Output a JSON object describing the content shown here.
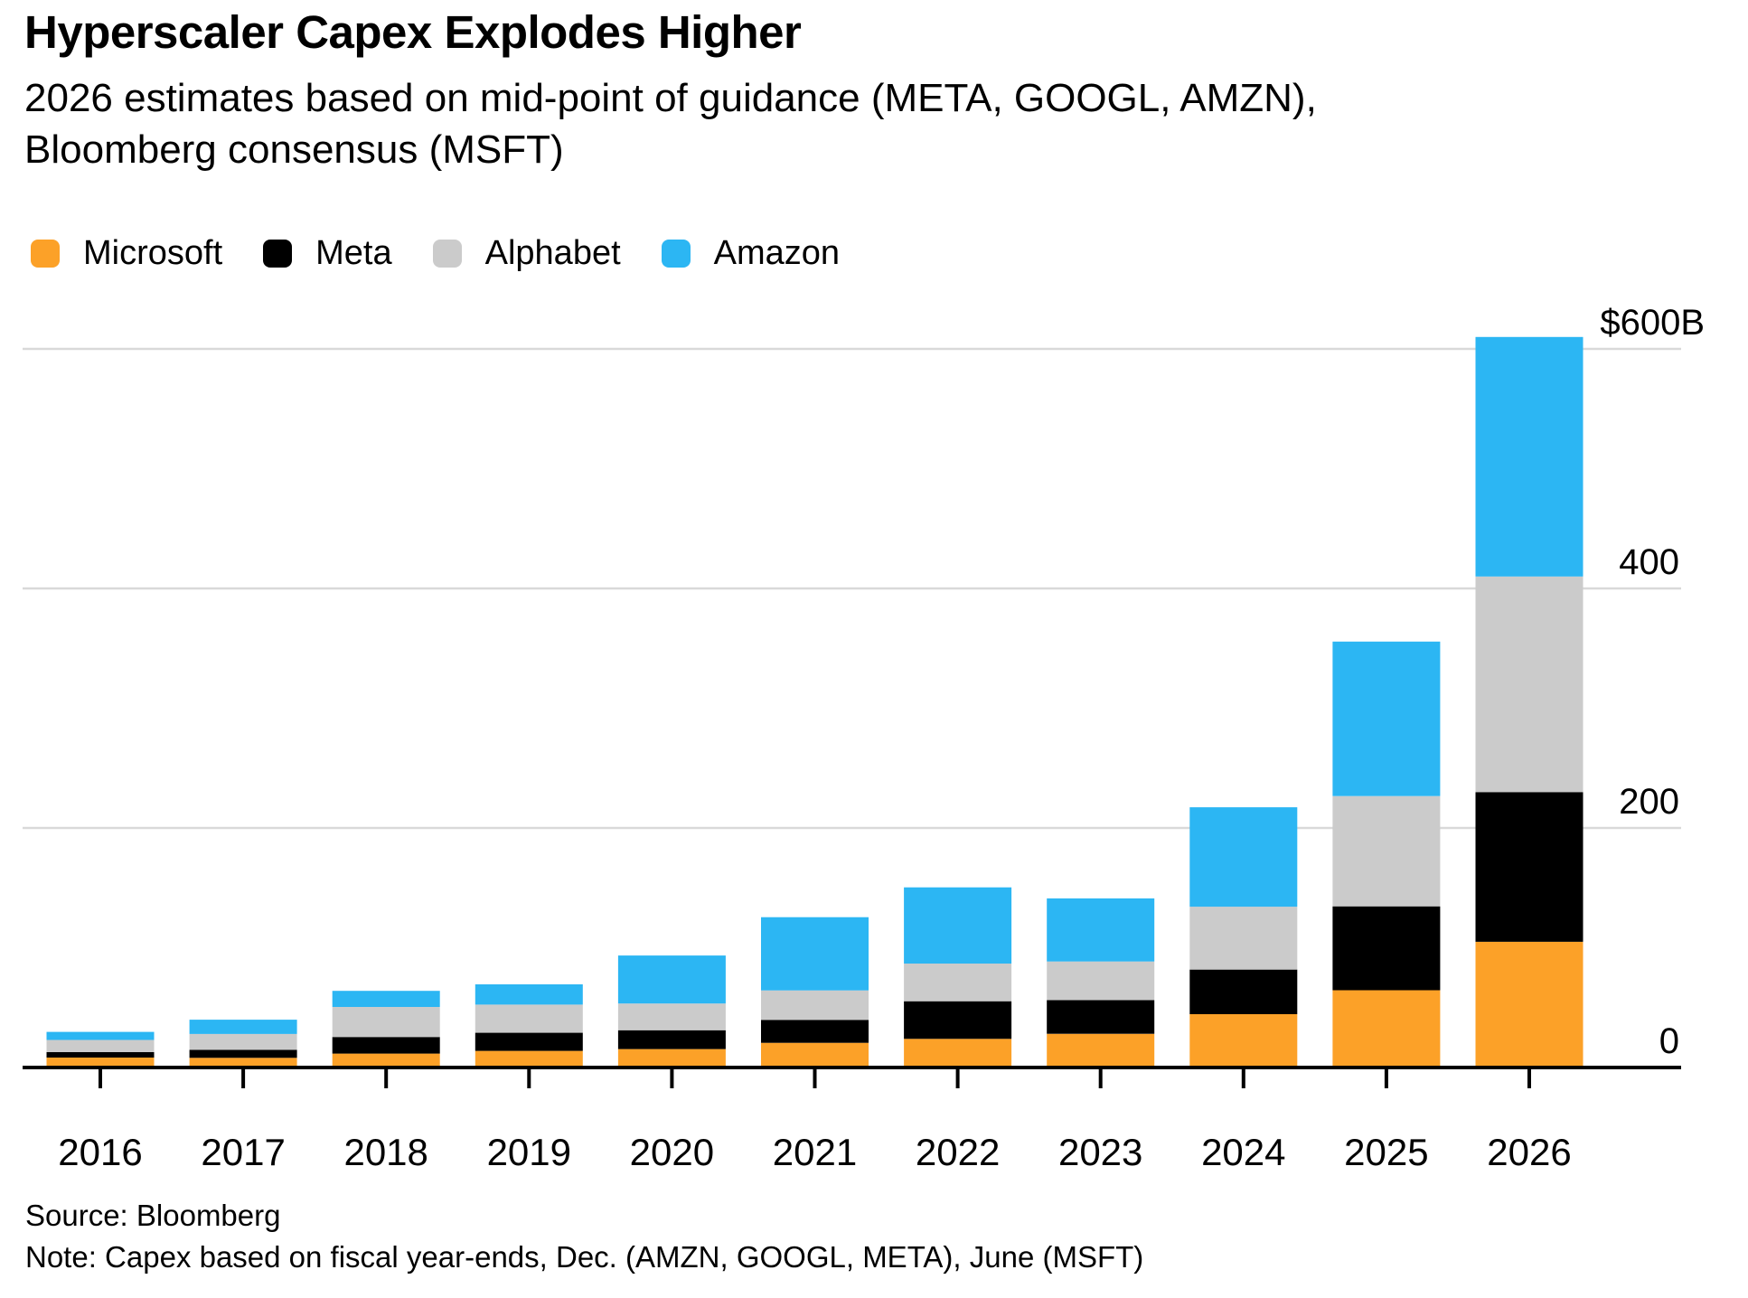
{
  "header": {
    "title": "Hyperscaler Capex Explodes Higher",
    "subtitle": "2026 estimates based on mid-point of guidance (META, GOOGL, AMZN), Bloomberg consensus (MSFT)"
  },
  "legend": {
    "items": [
      {
        "label": "Microsoft",
        "color": "#FCA128"
      },
      {
        "label": "Meta",
        "color": "#000000"
      },
      {
        "label": "Alphabet",
        "color": "#CBCBCB"
      },
      {
        "label": "Amazon",
        "color": "#2CB6F3"
      }
    ]
  },
  "chart_data": {
    "type": "bar",
    "stacked": true,
    "title": "Hyperscaler Capex Explodes Higher",
    "subtitle": "2026 estimates based on mid-point of guidance (META, GOOGL, AMZN), Bloomberg consensus (MSFT)",
    "unit": "$B",
    "categories": [
      "2016",
      "2017",
      "2018",
      "2019",
      "2020",
      "2021",
      "2022",
      "2023",
      "2024",
      "2025",
      "2026"
    ],
    "series": [
      {
        "name": "Microsoft",
        "color": "#FCA128",
        "values": [
          8.3,
          8.1,
          11.6,
          13.9,
          15.4,
          20.6,
          23.9,
          28.1,
          44.5,
          64.6,
          105
        ]
      },
      {
        "name": "Meta",
        "color": "#000000",
        "values": [
          4.5,
          6.7,
          13.9,
          15.1,
          15.7,
          19.2,
          31.4,
          28.1,
          37.3,
          70,
          125
        ]
      },
      {
        "name": "Alphabet",
        "color": "#CBCBCB",
        "values": [
          10.2,
          13.2,
          25.1,
          23.5,
          22.3,
          24.6,
          31.5,
          32.3,
          52.5,
          92,
          180
        ]
      },
      {
        "name": "Amazon",
        "color": "#2CB6F3",
        "values": [
          6.7,
          11.9,
          13.4,
          16.9,
          40.1,
          61.1,
          63.6,
          52.7,
          83,
          129,
          200
        ]
      }
    ],
    "y_axis": {
      "ticks": [
        {
          "label": "$600B",
          "value": 600
        },
        {
          "label": "400",
          "value": 400
        },
        {
          "label": "200",
          "value": 200
        },
        {
          "label": "0",
          "value": 0
        }
      ],
      "min": 0,
      "max": 620
    },
    "grid": "horizontal",
    "legend_position": "top",
    "xlabel": "",
    "ylabel": ""
  },
  "footer": {
    "source": "Source: Bloomberg",
    "note": "Note: Capex based on fiscal year-ends, Dec. (AMZN, GOOGL, META), June (MSFT)"
  }
}
